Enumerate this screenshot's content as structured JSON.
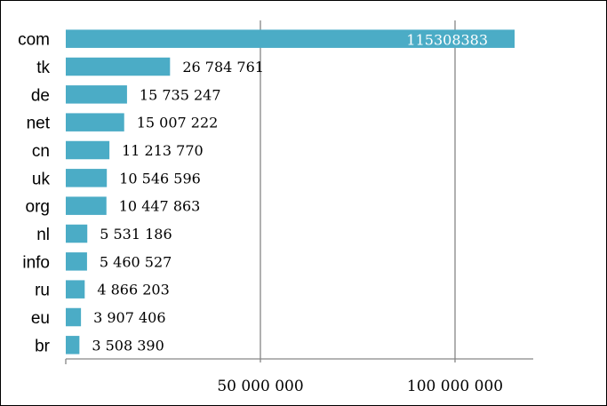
{
  "chart_data": {
    "type": "bar",
    "orientation": "horizontal",
    "categories": [
      "com",
      "tk",
      "de",
      "net",
      "cn",
      "uk",
      "org",
      "nl",
      "info",
      "ru",
      "eu",
      "br"
    ],
    "values": [
      115308383,
      26784761,
      15735247,
      15007222,
      11213770,
      10546596,
      10447863,
      5531186,
      5460527,
      4866203,
      3907406,
      3508390
    ],
    "value_labels": [
      "115308383",
      "26 784 761",
      "15 735 247",
      "15 007 222",
      "11 213 770",
      "10 546 596",
      "10 447 863",
      "5 531 186",
      "5 460 527",
      "4 866 203",
      "3 907 406",
      "3 508 390"
    ],
    "x_ticks": [
      {
        "value": 0,
        "label": ""
      },
      {
        "value": 50000000,
        "label": "50 000 000"
      },
      {
        "value": 100000000,
        "label": "100 000 000"
      }
    ],
    "xlim": [
      0,
      120000000
    ],
    "bar_color": "#4bacc6",
    "grid": "vertical-major",
    "title": "",
    "xlabel": "",
    "ylabel": ""
  }
}
